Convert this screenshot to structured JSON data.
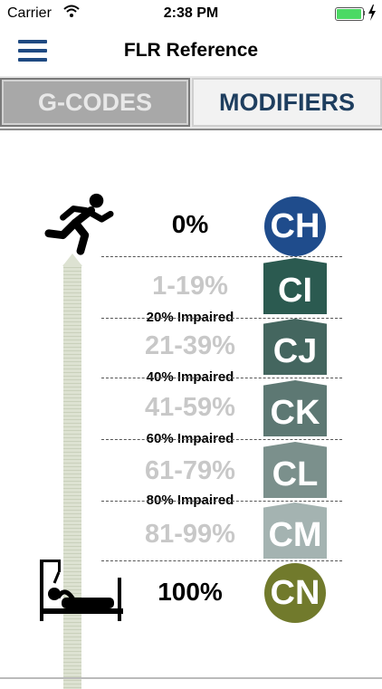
{
  "status": {
    "carrier": "Carrier",
    "time": "2:38 PM",
    "battery_level": 1.0,
    "battery_color": "#4cd964"
  },
  "nav": {
    "title": "FLR Reference",
    "menu_icon": "hamburger-menu-icon"
  },
  "tabs": [
    {
      "label": "G-CODES",
      "selected": false
    },
    {
      "label": "MODIFIERS",
      "selected": true
    }
  ],
  "scale": {
    "top_icon": "running-person-icon",
    "bottom_icon": "bedridden-person-icon",
    "endpoints": {
      "top": "0%",
      "bottom": "100%"
    },
    "ranges": [
      "1-19%",
      "21-39%",
      "41-59%",
      "61-79%",
      "81-99%"
    ],
    "thresholds": [
      "20% Impaired",
      "40% Impaired",
      "60% Impaired",
      "80% Impaired"
    ],
    "modifiers": [
      {
        "code": "CH",
        "color": "#1f4c8c"
      },
      {
        "code": "CI",
        "color": "#2b5a50"
      },
      {
        "code": "CJ",
        "color": "#44665f"
      },
      {
        "code": "CK",
        "color": "#5d7873"
      },
      {
        "code": "CL",
        "color": "#7b908c"
      },
      {
        "code": "CM",
        "color": "#a4b3b1"
      },
      {
        "code": "CN",
        "color": "#717a2c"
      }
    ]
  }
}
